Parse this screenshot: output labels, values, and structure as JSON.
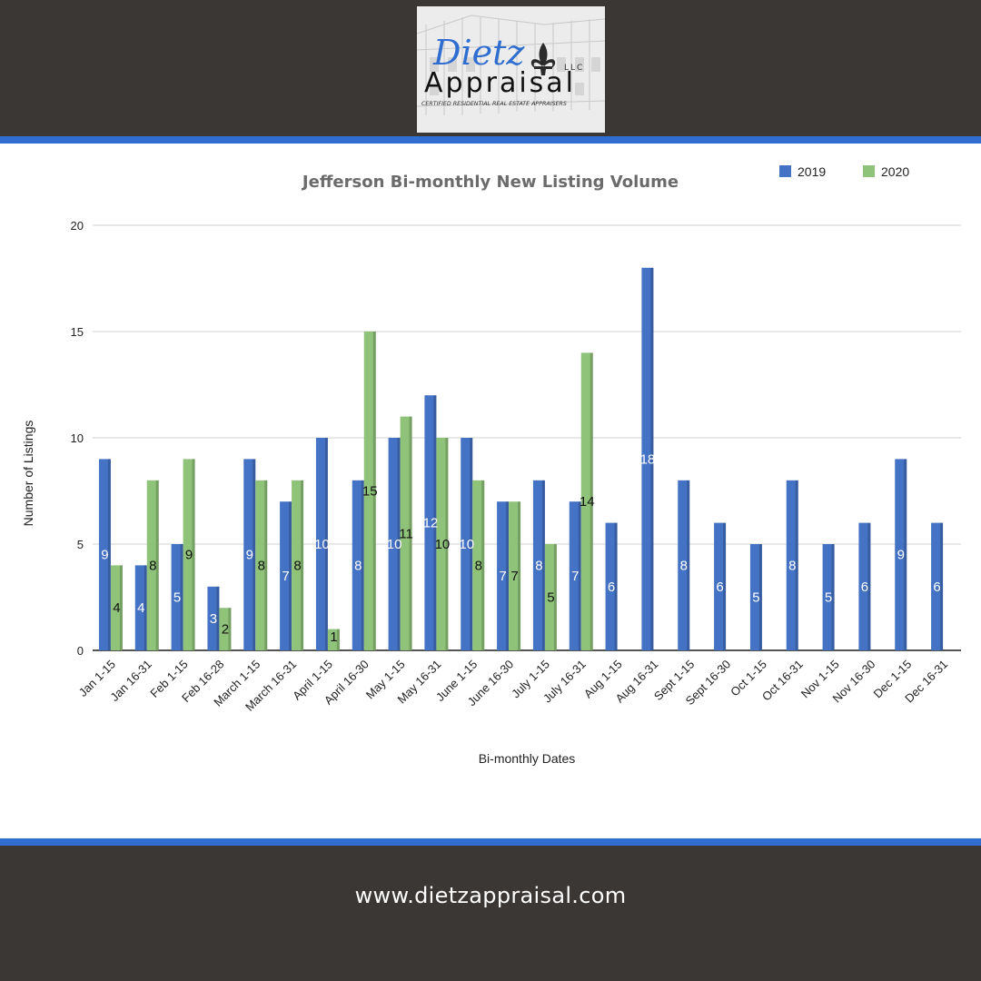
{
  "brand": {
    "script_name": "Dietz",
    "name": "Appraisal",
    "suffix": "LLC",
    "tagline": "CERTIFIED RESIDENTIAL REAL ESTATE APPRAISERS"
  },
  "footer": {
    "url": "www.dietzappraisal.com"
  },
  "colors": {
    "series_2019": "#4472c4",
    "series_2020": "#8fc379",
    "accent_line": "#2f6ed0",
    "frame": "#3b3735"
  },
  "chart_data": {
    "type": "bar",
    "title": "Jefferson Bi-monthly New Listing Volume",
    "xlabel": "Bi-monthly Dates",
    "ylabel": "Number of Listings",
    "ylim": [
      0,
      20
    ],
    "yticks": [
      0,
      5,
      10,
      15,
      20
    ],
    "grid": true,
    "legend_position": "top-right",
    "categories": [
      "Jan 1-15",
      "Jan 16-31",
      "Feb 1-15",
      "Feb 16-28",
      "March 1-15",
      "March 16-31",
      "April 1-15",
      "April 16-30",
      "May 1-15",
      "May 16-31",
      "June 1-15",
      "June 16-30",
      "July 1-15",
      "July 16-31",
      "Aug 1-15",
      "Aug 16-31",
      "Sept 1-15",
      "Sept 16-30",
      "Oct 1-15",
      "Oct 16-31",
      "Nov 1-15",
      "Nov 16-30",
      "Dec 1-15",
      "Dec 16-31"
    ],
    "series": [
      {
        "name": "2019",
        "color": "#4472c4",
        "values": [
          9,
          4,
          5,
          3,
          9,
          7,
          10,
          8,
          10,
          12,
          10,
          7,
          8,
          7,
          6,
          18,
          8,
          6,
          5,
          8,
          5,
          6,
          9,
          6
        ]
      },
      {
        "name": "2020",
        "color": "#8fc379",
        "values": [
          4,
          8,
          9,
          2,
          8,
          8,
          1,
          15,
          11,
          10,
          8,
          7,
          5,
          14,
          null,
          null,
          null,
          null,
          null,
          null,
          null,
          null,
          null,
          null
        ]
      }
    ]
  }
}
